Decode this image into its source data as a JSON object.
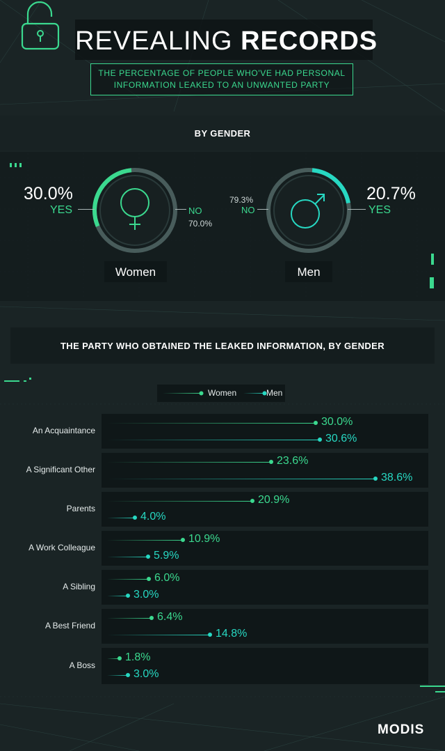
{
  "header": {
    "title_light": "REVEALING",
    "title_bold": "RECORDS",
    "subtitle_line1": "THE PERCENTAGE OF PEOPLE WHO'VE HAD PERSONAL",
    "subtitle_line2": "INFORMATION LEAKED TO AN UNWANTED PARTY"
  },
  "gender_section": {
    "title": "BY GENDER",
    "women": {
      "label": "Women",
      "yes_pct": "30.0%",
      "yes_label": "YES",
      "no_label": "NO",
      "no_pct": "70.0%",
      "yes_value": 30.0
    },
    "men": {
      "label": "Men",
      "yes_pct": "20.7%",
      "yes_label": "YES",
      "no_label": "NO",
      "no_pct": "79.3%",
      "yes_value": 20.7
    }
  },
  "party_section": {
    "title": "THE PARTY WHO OBTAINED THE LEAKED INFORMATION, BY GENDER"
  },
  "legend": {
    "women": "Women",
    "men": "Men"
  },
  "colors": {
    "women": "#3bd98f",
    "men": "#27d8c2",
    "background": "#1a2425",
    "panel": "#0f1718"
  },
  "brand": "MODIS",
  "chart_data": [
    {
      "type": "pie",
      "title": "Women",
      "values": [
        30.0,
        70.0
      ],
      "labels": [
        "YES",
        "NO"
      ]
    },
    {
      "type": "pie",
      "title": "Men",
      "values": [
        20.7,
        79.3
      ],
      "labels": [
        "YES",
        "NO"
      ]
    },
    {
      "type": "bar",
      "orientation": "horizontal",
      "title": "THE PARTY WHO OBTAINED THE LEAKED INFORMATION, BY GENDER",
      "categories": [
        "An Acquaintance",
        "A Significant Other",
        "Parents",
        "A Work Colleague",
        "A Sibling",
        "A Best Friend",
        "A Boss"
      ],
      "series": [
        {
          "name": "Women",
          "values": [
            30.0,
            23.6,
            20.9,
            10.9,
            6.0,
            6.4,
            1.8
          ],
          "labels": [
            "30.0%",
            "23.6%",
            "20.9%",
            "10.9%",
            "6.0%",
            "6.4%",
            "1.8%"
          ]
        },
        {
          "name": "Men",
          "values": [
            30.6,
            38.6,
            4.0,
            5.9,
            3.0,
            14.8,
            3.0
          ],
          "labels": [
            "30.6%",
            "38.6%",
            "4.0%",
            "5.9%",
            "3.0%",
            "14.8%",
            "3.0%"
          ]
        }
      ],
      "legend": "top"
    }
  ]
}
